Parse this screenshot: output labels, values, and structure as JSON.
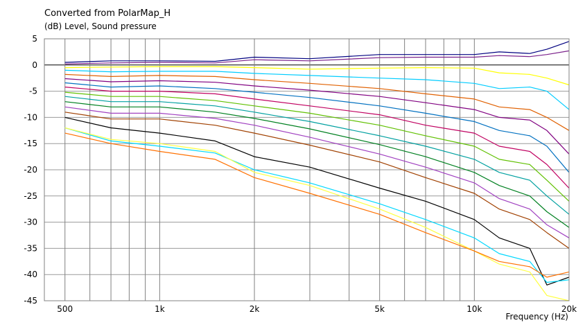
{
  "chart_data": {
    "type": "line",
    "title": "Converted from PolarMap_H",
    "ylabel": "(dB)  Level, Sound pressure",
    "xlabel": "Frequency  (Hz)",
    "x_scale": "log",
    "xlim": [
      430,
      20000
    ],
    "ylim": [
      -45,
      5
    ],
    "y_ticks": [
      5,
      0,
      -5,
      -10,
      -15,
      -20,
      -25,
      -30,
      -35,
      -40,
      -45
    ],
    "x_tick_labels": [
      {
        "value": 500,
        "label": "500"
      },
      {
        "value": 1000,
        "label": "1k"
      },
      {
        "value": 2000,
        "label": "2k"
      },
      {
        "value": 5000,
        "label": "5k"
      },
      {
        "value": 10000,
        "label": "10k"
      },
      {
        "value": 20000,
        "label": "20k"
      }
    ],
    "x_grid": [
      500,
      600,
      700,
      800,
      900,
      1000,
      2000,
      3000,
      4000,
      5000,
      6000,
      7000,
      8000,
      9000,
      10000
    ],
    "grid": true,
    "x": [
      500,
      700,
      1000,
      1500,
      2000,
      3000,
      5000,
      7000,
      10000,
      12000,
      15000,
      17000,
      20000
    ],
    "series": [
      {
        "color": "#000080",
        "values": [
          0.5,
          0.8,
          0.8,
          0.7,
          1.5,
          1.2,
          2.0,
          2.0,
          2.0,
          2.5,
          2.2,
          3.0,
          4.5
        ]
      },
      {
        "color": "#7a1f8a",
        "values": [
          0.2,
          0.4,
          0.5,
          0.4,
          1.0,
          0.8,
          1.4,
          1.5,
          1.5,
          1.8,
          1.6,
          2.0,
          2.7
        ]
      },
      {
        "color": "#ffff00",
        "values": [
          -0.5,
          -0.4,
          -0.3,
          -0.3,
          -0.5,
          -0.8,
          -0.6,
          -0.5,
          -0.6,
          -1.5,
          -1.8,
          -2.5,
          -3.8
        ]
      },
      {
        "color": "#00ccff",
        "values": [
          -1.0,
          -1.3,
          -1.2,
          -1.2,
          -1.6,
          -2.0,
          -2.5,
          -2.8,
          -3.5,
          -4.5,
          -4.2,
          -5.0,
          -8.5
        ]
      },
      {
        "color": "#e06000",
        "values": [
          -1.8,
          -2.2,
          -2.0,
          -2.2,
          -2.8,
          -3.5,
          -4.5,
          -5.5,
          -6.5,
          -8.0,
          -8.5,
          -10.0,
          -12.5
        ]
      },
      {
        "color": "#800080",
        "values": [
          -2.6,
          -3.2,
          -3.0,
          -3.3,
          -4.0,
          -4.8,
          -6.0,
          -7.2,
          -8.5,
          -10.0,
          -10.5,
          -12.5,
          -17.0
        ]
      },
      {
        "color": "#0070c0",
        "values": [
          -3.4,
          -4.2,
          -4.0,
          -4.5,
          -5.2,
          -6.2,
          -7.8,
          -9.2,
          -10.8,
          -12.5,
          -13.5,
          -15.5,
          -20.5
        ]
      },
      {
        "color": "#c00060",
        "values": [
          -4.2,
          -5.0,
          -5.0,
          -5.5,
          -6.5,
          -7.8,
          -9.5,
          -11.5,
          -13.0,
          -15.5,
          -16.5,
          -19.0,
          -23.5
        ]
      },
      {
        "color": "#60c000",
        "values": [
          -5.2,
          -6.0,
          -6.0,
          -6.8,
          -7.8,
          -9.2,
          -11.5,
          -13.5,
          -15.5,
          -18.0,
          -19.0,
          -22.0,
          -26.0
        ]
      },
      {
        "color": "#00a0a0",
        "values": [
          -6.0,
          -7.0,
          -7.0,
          -7.8,
          -9.0,
          -10.8,
          -13.5,
          -15.5,
          -18.0,
          -20.5,
          -22.0,
          -25.0,
          -28.5
        ]
      },
      {
        "color": "#008020",
        "values": [
          -7.0,
          -8.0,
          -8.0,
          -9.0,
          -10.2,
          -12.2,
          -15.2,
          -17.5,
          -20.5,
          -23.0,
          -25.0,
          -28.0,
          -31.0
        ]
      },
      {
        "color": "#a040c0",
        "values": [
          -8.0,
          -9.2,
          -9.2,
          -10.2,
          -11.5,
          -13.8,
          -17.0,
          -19.5,
          -22.5,
          -25.5,
          -27.5,
          -30.5,
          -33.0
        ]
      },
      {
        "color": "#a04000",
        "values": [
          -9.0,
          -10.3,
          -10.3,
          -11.5,
          -13.0,
          -15.3,
          -18.5,
          -21.5,
          -24.5,
          -27.5,
          -29.5,
          -32.0,
          -35.0
        ]
      },
      {
        "color": "#000000",
        "values": [
          -10.0,
          -12.0,
          -13.0,
          -14.5,
          -17.5,
          -19.5,
          -23.5,
          -26.0,
          -29.5,
          -33.0,
          -35.0,
          -42.0,
          -40.5
        ]
      },
      {
        "color": "#00d8ff",
        "values": [
          -12.0,
          -14.5,
          -15.5,
          -16.8,
          -20.0,
          -22.5,
          -26.5,
          -29.5,
          -33.0,
          -36.0,
          -37.5,
          -41.5,
          -41.0
        ]
      },
      {
        "color": "#ffff40",
        "values": [
          -12.0,
          -14.2,
          -15.0,
          -16.5,
          -20.5,
          -23.0,
          -27.5,
          -31.0,
          -35.5,
          -38.0,
          -39.5,
          -44.0,
          -45.0
        ]
      },
      {
        "color": "#ff7000",
        "values": [
          -13.0,
          -15.0,
          -16.5,
          -18.0,
          -21.5,
          -24.5,
          -28.5,
          -32.0,
          -35.5,
          -37.5,
          -38.5,
          -40.5,
          -39.5
        ]
      }
    ]
  }
}
